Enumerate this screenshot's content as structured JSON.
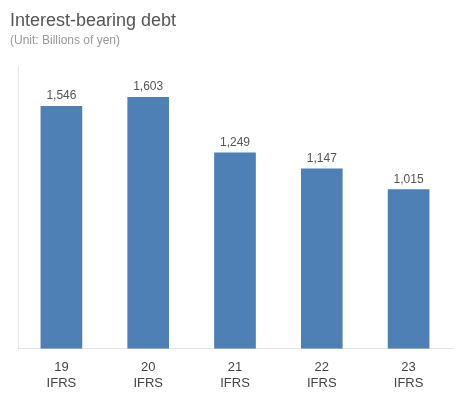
{
  "chart_data": {
    "type": "bar",
    "title": "Interest-bearing debt",
    "subtitle": "(Unit: Billions of yen)",
    "categories": [
      "19",
      "20",
      "21",
      "22",
      "23"
    ],
    "sublabels": [
      "IFRS",
      "IFRS",
      "IFRS",
      "IFRS",
      "IFRS"
    ],
    "values": [
      1546,
      1603,
      1249,
      1147,
      1015
    ],
    "value_labels": [
      "1,546",
      "1,603",
      "1,249",
      "1,147",
      "1,015"
    ],
    "color": "#4e7fb5",
    "ylim": [
      0,
      1800
    ],
    "grid": false,
    "data_labels": true,
    "tick_labels": "x"
  }
}
